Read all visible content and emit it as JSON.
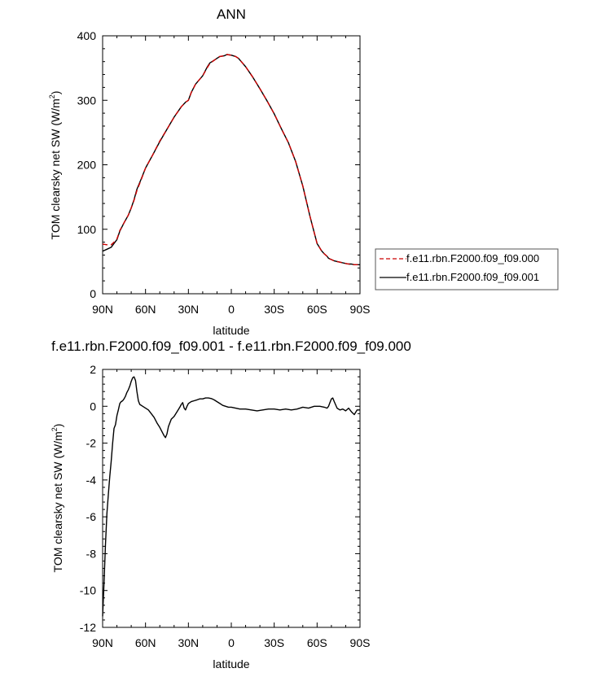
{
  "chart_data": [
    {
      "type": "line",
      "title": "ANN",
      "xlabel": "latitude",
      "ylabel": "TOM clearsky net SW (W/m",
      "ylabel_sup": "2",
      "ylabel_close": ")",
      "xlim": [
        90,
        -90
      ],
      "ylim": [
        0,
        400
      ],
      "x_ticks": [
        {
          "value": 90,
          "label": "90N"
        },
        {
          "value": 60,
          "label": "60N"
        },
        {
          "value": 30,
          "label": "30N"
        },
        {
          "value": 0,
          "label": "0"
        },
        {
          "value": -30,
          "label": "30S"
        },
        {
          "value": -60,
          "label": "60S"
        },
        {
          "value": -90,
          "label": "90S"
        }
      ],
      "y_ticks": [
        0,
        100,
        200,
        300,
        400
      ],
      "legend_position": "right",
      "series": [
        {
          "name": "f.e11.rbn.F2000.f09_f09.000",
          "color": "#cc0000",
          "dash": "dashed",
          "x": [
            90,
            87,
            84,
            82,
            80,
            78,
            75,
            72,
            70,
            68,
            66,
            63,
            60,
            55,
            50,
            45,
            40,
            35,
            32,
            30,
            28,
            25,
            20,
            17,
            15,
            12,
            10,
            8,
            5,
            3,
            0,
            -3,
            -5,
            -10,
            -15,
            -20,
            -25,
            -30,
            -35,
            -40,
            -45,
            -50,
            -55,
            -60,
            -63,
            -65,
            -67,
            -68,
            -69,
            -70,
            -72,
            -74,
            -76,
            -78,
            -80,
            -82,
            -84,
            -86,
            -88,
            -90
          ],
          "y": [
            77,
            76,
            76,
            80,
            85,
            98,
            110,
            122,
            133,
            145,
            160,
            177,
            195,
            215,
            237,
            255,
            274,
            290,
            297,
            300,
            312,
            325,
            338,
            350,
            357,
            362,
            365,
            368,
            369,
            371,
            370,
            368,
            365,
            352,
            336,
            318,
            299,
            279,
            256,
            234,
            205,
            167,
            120,
            78,
            67,
            62,
            58,
            55,
            54,
            53,
            51,
            50,
            49,
            48,
            47,
            46,
            46,
            45,
            45,
            45
          ]
        },
        {
          "name": "f.e11.rbn.F2000.f09_f09.001",
          "color": "#000000",
          "dash": "solid",
          "x": [
            90,
            87,
            84,
            82,
            80,
            78,
            75,
            72,
            70,
            68,
            66,
            63,
            60,
            55,
            50,
            45,
            40,
            35,
            32,
            30,
            28,
            25,
            20,
            17,
            15,
            12,
            10,
            8,
            5,
            3,
            0,
            -3,
            -5,
            -10,
            -15,
            -20,
            -25,
            -30,
            -35,
            -40,
            -45,
            -50,
            -55,
            -60,
            -63,
            -65,
            -67,
            -68,
            -69,
            -70,
            -72,
            -74,
            -76,
            -78,
            -80,
            -82,
            -84,
            -86,
            -88,
            -90
          ],
          "y": [
            66,
            69,
            72,
            78,
            84,
            97,
            110,
            122,
            133,
            146,
            162,
            178,
            195,
            215,
            236,
            255,
            274,
            290,
            297,
            300,
            312,
            325,
            338,
            351,
            358,
            362,
            365,
            368,
            369,
            371,
            370,
            368,
            365,
            352,
            336,
            318,
            299,
            279,
            256,
            234,
            205,
            167,
            120,
            78,
            67,
            62,
            58,
            55,
            54,
            53,
            51,
            50,
            49,
            48,
            47,
            46,
            46,
            45,
            45,
            45
          ]
        }
      ]
    },
    {
      "type": "line",
      "title": "f.e11.rbn.F2000.f09_f09.001 - f.e11.rbn.F2000.f09_f09.000",
      "xlabel": "latitude",
      "ylabel": "TOM clearsky net SW (W/m",
      "ylabel_sup": "2",
      "ylabel_close": ")",
      "xlim": [
        90,
        -90
      ],
      "ylim": [
        -12,
        2
      ],
      "x_ticks": [
        {
          "value": 90,
          "label": "90N"
        },
        {
          "value": 60,
          "label": "60N"
        },
        {
          "value": 30,
          "label": "30N"
        },
        {
          "value": 0,
          "label": "0"
        },
        {
          "value": -30,
          "label": "30S"
        },
        {
          "value": -60,
          "label": "60S"
        },
        {
          "value": -90,
          "label": "90S"
        }
      ],
      "y_ticks": [
        2,
        0,
        -2,
        -4,
        -6,
        -8,
        -10,
        -12
      ],
      "series": [
        {
          "color": "#000000",
          "dash": "solid",
          "x": [
            90,
            89,
            88,
            87,
            86,
            85,
            84,
            83,
            82,
            81,
            80,
            79,
            78,
            77,
            76,
            75,
            74,
            73,
            72,
            71,
            70,
            69,
            68,
            67,
            66,
            65,
            64,
            62,
            60,
            58,
            56,
            54,
            52,
            50,
            48,
            47,
            46,
            45,
            44,
            42,
            40,
            38,
            36,
            35,
            34,
            33,
            32,
            31,
            30,
            28,
            26,
            24,
            22,
            20,
            18,
            16,
            14,
            12,
            10,
            8,
            6,
            4,
            2,
            0,
            -3,
            -6,
            -10,
            -14,
            -18,
            -22,
            -26,
            -30,
            -34,
            -38,
            -42,
            -46,
            -50,
            -54,
            -58,
            -62,
            -65,
            -67,
            -68,
            -69,
            -70,
            -71,
            -72,
            -74,
            -76,
            -78,
            -80,
            -82,
            -84,
            -86,
            -88,
            -90
          ],
          "y": [
            -11.4,
            -9.5,
            -7.5,
            -5.8,
            -4.8,
            -3.8,
            -3.0,
            -2.0,
            -1.2,
            -1.0,
            -0.5,
            -0.2,
            0.15,
            0.25,
            0.3,
            0.4,
            0.55,
            0.75,
            0.9,
            1.1,
            1.35,
            1.55,
            1.6,
            1.4,
            0.8,
            0.3,
            0.1,
            0.0,
            -0.1,
            -0.2,
            -0.4,
            -0.6,
            -0.9,
            -1.15,
            -1.45,
            -1.6,
            -1.7,
            -1.5,
            -1.1,
            -0.7,
            -0.55,
            -0.3,
            -0.05,
            0.1,
            0.2,
            -0.1,
            -0.2,
            0.0,
            0.15,
            0.25,
            0.3,
            0.35,
            0.4,
            0.4,
            0.45,
            0.45,
            0.42,
            0.35,
            0.25,
            0.15,
            0.05,
            0.0,
            -0.05,
            -0.05,
            -0.1,
            -0.15,
            -0.15,
            -0.2,
            -0.25,
            -0.2,
            -0.15,
            -0.15,
            -0.2,
            -0.15,
            -0.2,
            -0.15,
            -0.05,
            -0.1,
            0.0,
            0.0,
            -0.05,
            -0.1,
            0.0,
            0.2,
            0.4,
            0.45,
            0.25,
            -0.1,
            -0.2,
            -0.15,
            -0.25,
            -0.1,
            -0.3,
            -0.45,
            -0.2,
            -0.2
          ]
        }
      ]
    }
  ]
}
